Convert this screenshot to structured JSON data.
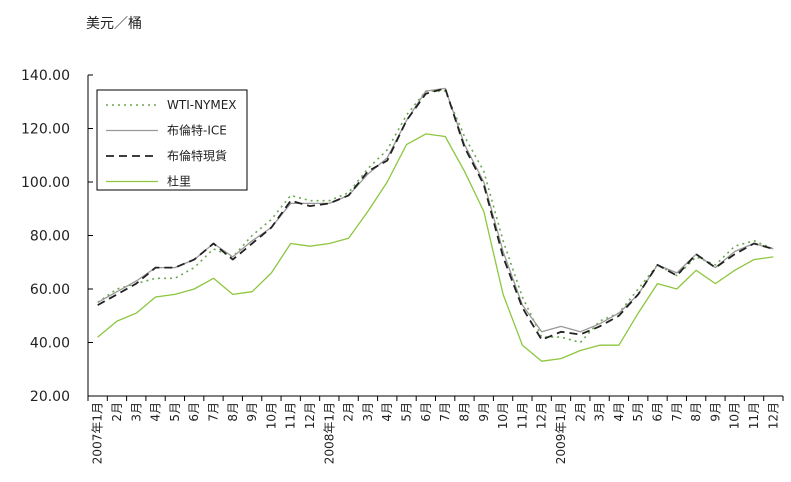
{
  "chart_data": {
    "type": "line",
    "ylabel": "美元／桶",
    "ylim": [
      20,
      140
    ],
    "yticks": [
      "20.00",
      "40.00",
      "60.00",
      "80.00",
      "100.00",
      "120.00",
      "140.00"
    ],
    "ytick_values": [
      20,
      40,
      60,
      80,
      100,
      120,
      140
    ],
    "grid": false,
    "legend_position": "top-left",
    "categories": [
      "2007年1月",
      "2月",
      "3月",
      "4月",
      "5月",
      "6月",
      "7月",
      "8月",
      "9月",
      "10月",
      "11月",
      "12月",
      "2008年1月",
      "2月",
      "3月",
      "4月",
      "5月",
      "6月",
      "7月",
      "8月",
      "9月",
      "10月",
      "11月",
      "12月",
      "2009年1月",
      "2月",
      "3月",
      "4月",
      "5月",
      "6月",
      "7月",
      "8月",
      "9月",
      "10月",
      "11月",
      "12月"
    ],
    "series": [
      {
        "name": "WTI-NYMEX",
        "color": "#6aa84f",
        "dash": "dotted",
        "values": [
          55,
          60,
          62,
          64,
          64,
          68,
          75,
          72,
          80,
          86,
          95,
          93,
          93,
          96,
          105,
          112,
          125,
          134,
          134,
          117,
          104,
          78,
          57,
          42,
          42,
          40,
          48,
          51,
          60,
          69,
          65,
          72,
          69,
          76,
          78,
          75
        ]
      },
      {
        "name": "布倫特-ICE",
        "color": "#999999",
        "dash": "solid",
        "values": [
          55,
          59,
          63,
          68,
          68,
          71,
          77,
          72,
          78,
          83,
          92,
          92,
          92,
          95,
          103,
          109,
          123,
          134,
          135,
          114,
          100,
          74,
          54,
          44,
          46,
          44,
          47,
          51,
          58,
          69,
          66,
          73,
          68,
          74,
          77,
          75
        ]
      },
      {
        "name": "布倫特現貨",
        "color": "#222222",
        "dash": "dashed",
        "values": [
          54,
          58,
          62,
          68,
          68,
          71,
          77,
          71,
          77,
          83,
          93,
          91,
          92,
          95,
          104,
          108,
          123,
          133,
          135,
          113,
          99,
          72,
          53,
          41,
          44,
          43,
          46,
          50,
          58,
          69,
          65,
          73,
          68,
          73,
          77,
          75
        ]
      },
      {
        "name": "杜里",
        "color": "#8dc63f",
        "dash": "solid",
        "values": [
          42,
          48,
          51,
          57,
          58,
          60,
          64,
          58,
          59,
          66,
          77,
          76,
          77,
          79,
          89,
          100,
          114,
          118,
          117,
          104,
          89,
          58,
          39,
          33,
          34,
          37,
          39,
          39,
          51,
          62,
          60,
          67,
          62,
          67,
          71,
          72
        ]
      }
    ]
  }
}
